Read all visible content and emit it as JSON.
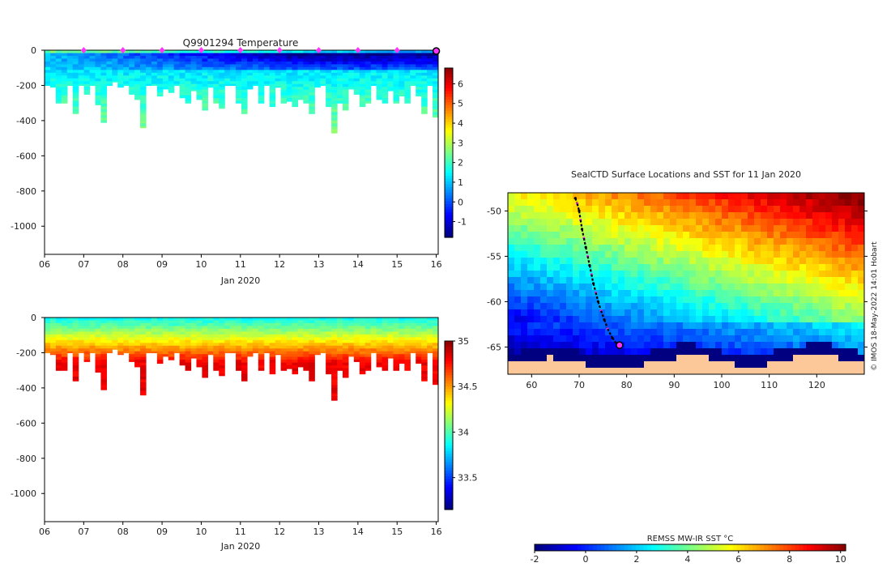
{
  "chart_data": [
    {
      "type": "heatmap",
      "name": "temperature-section",
      "title": "Q9901294  Temperature",
      "xlabel": "Jan 2020",
      "xticks": [
        "06",
        "07",
        "08",
        "09",
        "10",
        "11",
        "12",
        "13",
        "14",
        "15",
        "16"
      ],
      "xlim": [
        6,
        16.05
      ],
      "ylim": [
        -1160,
        0
      ],
      "yticks": [
        0,
        -200,
        -400,
        -600,
        -800,
        -1000
      ],
      "profile_days": [
        7,
        8,
        9,
        10,
        11,
        12,
        13,
        14,
        15
      ],
      "current_day": 16,
      "colorbar": {
        "ticks": [
          -1,
          0,
          1,
          2,
          3,
          4,
          5,
          6
        ],
        "min": -1.8,
        "max": 6.8
      },
      "profile_depths": [
        200,
        210,
        300,
        300,
        200,
        360,
        200,
        250,
        200,
        310,
        410,
        200,
        180,
        210,
        200,
        250,
        280,
        440,
        200,
        200,
        260,
        220,
        240,
        200,
        270,
        300,
        230,
        280,
        340,
        210,
        300,
        330,
        200,
        200,
        300,
        360,
        220,
        200,
        300,
        200,
        320,
        210,
        300,
        290,
        320,
        280,
        300,
        360,
        210,
        200,
        320,
        470,
        300,
        340,
        220,
        250,
        320,
        300,
        200,
        280,
        300,
        230,
        300,
        260,
        300,
        200,
        260,
        360,
        200,
        380
      ]
    },
    {
      "type": "heatmap",
      "name": "salinity-section",
      "title": "",
      "xlabel": "Jan 2020",
      "xticks": [
        "06",
        "07",
        "08",
        "09",
        "10",
        "11",
        "12",
        "13",
        "14",
        "15",
        "16"
      ],
      "xlim": [
        6,
        16.05
      ],
      "ylim": [
        -1160,
        0
      ],
      "yticks": [
        0,
        -200,
        -400,
        -600,
        -800,
        -1000
      ],
      "colorbar": {
        "ticks": [
          33.5,
          34,
          34.5,
          35
        ],
        "min": 33.15,
        "max": 35.0
      }
    },
    {
      "type": "heatmap",
      "name": "sst-map",
      "title": "SealCTD Surface Locations and SST for 11 Jan 2020",
      "xticks": [
        60,
        70,
        80,
        90,
        100,
        110,
        120
      ],
      "yticks": [
        -50,
        -55,
        -60,
        -65
      ],
      "xlim": [
        55,
        130
      ],
      "ylim": [
        -68,
        -48
      ],
      "track": [
        [
          69.2,
          -48.6
        ],
        [
          69.6,
          -49.2
        ],
        [
          70.0,
          -50.0
        ],
        [
          70.3,
          -51.0
        ],
        [
          70.6,
          -52.0
        ],
        [
          71.0,
          -53.0
        ],
        [
          71.4,
          -54.0
        ],
        [
          71.8,
          -55.0
        ],
        [
          72.2,
          -56.0
        ],
        [
          72.6,
          -57.0
        ],
        [
          73.0,
          -58.0
        ],
        [
          73.5,
          -59.0
        ],
        [
          74.0,
          -60.0
        ],
        [
          74.6,
          -61.0
        ],
        [
          75.3,
          -62.0
        ],
        [
          76.0,
          -63.0
        ],
        [
          77.0,
          -64.0
        ],
        [
          78.2,
          -64.9
        ]
      ],
      "track_end": [
        78.5,
        -64.8
      ],
      "colorbar_label": "REMSS MW-IR SST °C",
      "colorbar": {
        "ticks": [
          -2,
          0,
          2,
          4,
          6,
          8,
          10
        ],
        "min": -2.0,
        "max": 10.2
      }
    }
  ],
  "credit": "© IMOS 18-May-2022 14:01 Hobart"
}
